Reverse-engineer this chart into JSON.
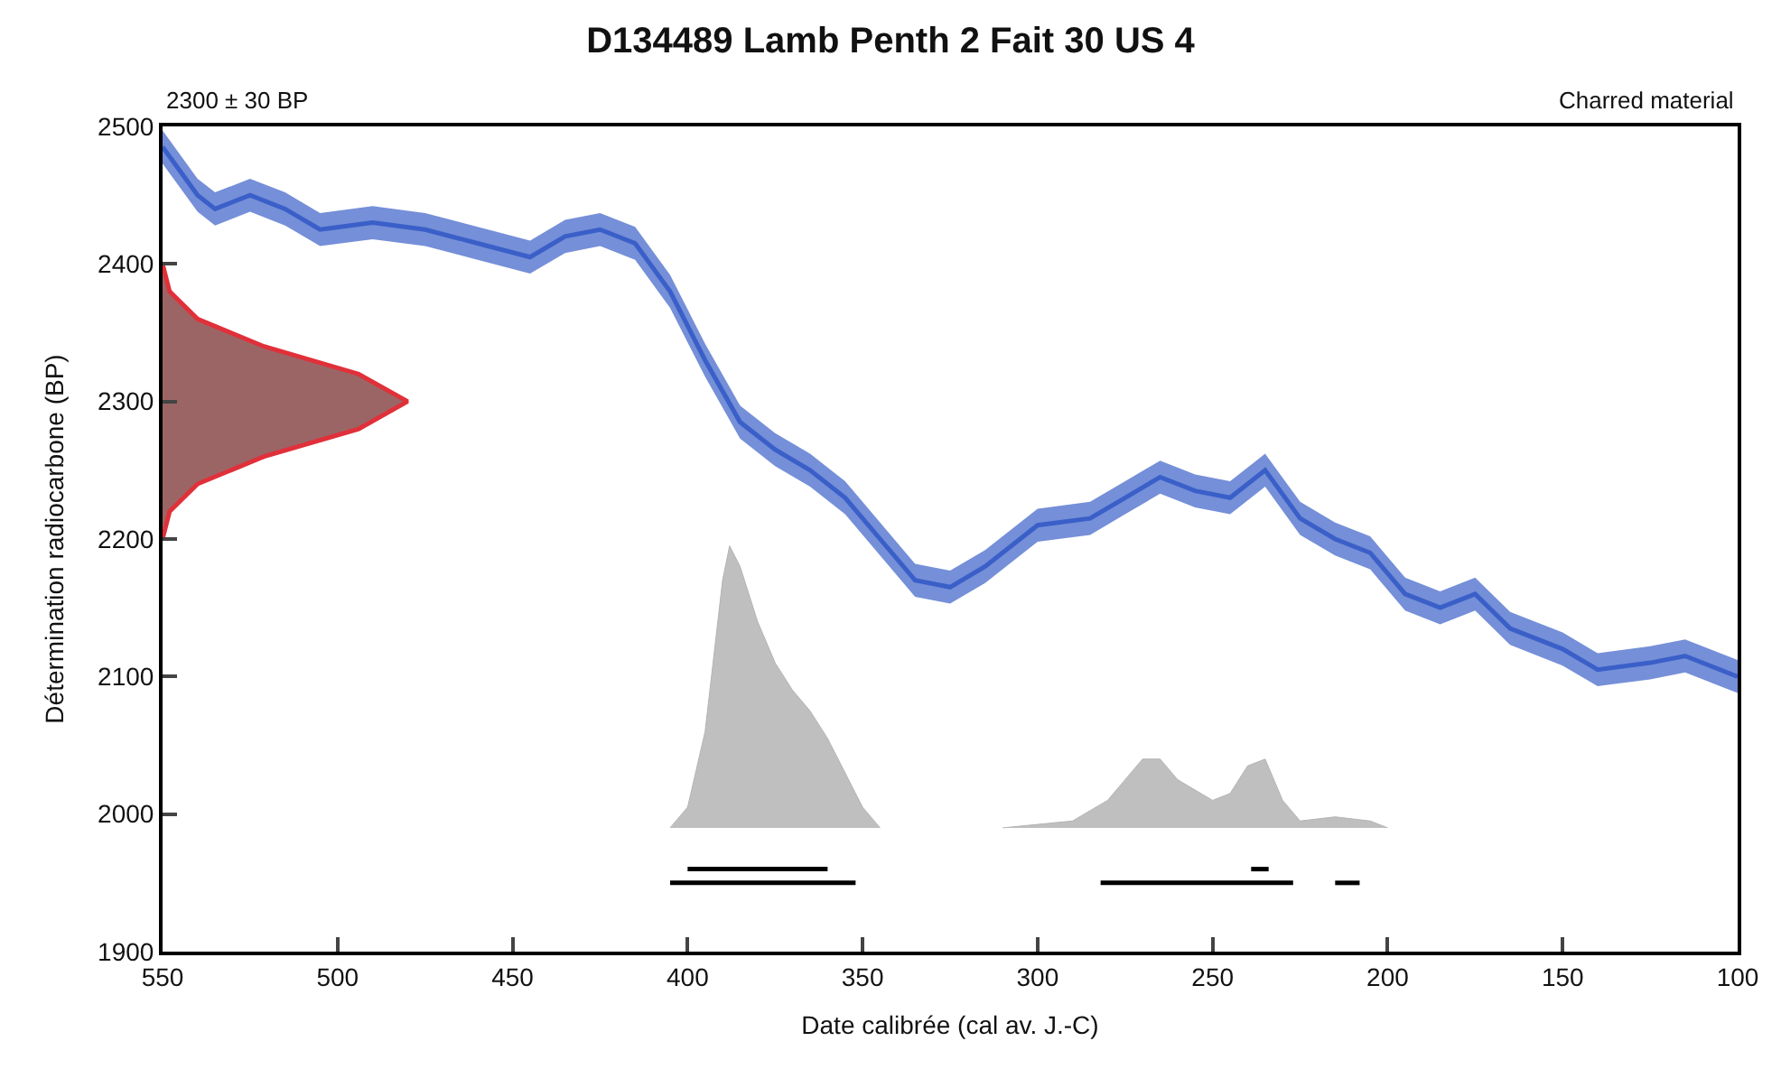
{
  "chart_data": {
    "type": "area",
    "title": "D134489 Lamb Penth 2 Fait 30 US 4",
    "xlabel": "Date calibrée (cal av. J.-C)",
    "ylabel": "Détermination radiocarbone (BP)",
    "annotations": [
      "2300 ± 30 BP",
      "Charred material"
    ],
    "xlim": [
      550,
      100
    ],
    "xticks": [
      550,
      500,
      450,
      400,
      350,
      300,
      250,
      200,
      150,
      100
    ],
    "ylim": [
      1900,
      2500
    ],
    "yticks": [
      1900,
      2000,
      2100,
      2200,
      2300,
      2400,
      2500
    ],
    "series": [
      {
        "type": "line",
        "color": "#3a5fc8",
        "x": [
          550,
          540,
          535,
          525,
          515,
          505,
          490,
          475,
          460,
          445,
          435,
          425,
          415,
          405,
          395,
          385,
          375,
          365,
          355,
          345,
          335,
          325,
          315,
          300,
          285,
          275,
          265,
          255,
          245,
          235,
          225,
          215,
          205,
          195,
          185,
          175,
          165,
          150,
          140,
          125,
          115,
          100
        ],
        "values": [
          2485,
          2450,
          2440,
          2450,
          2440,
          2425,
          2430,
          2425,
          2415,
          2405,
          2420,
          2425,
          2415,
          2380,
          2330,
          2285,
          2265,
          2250,
          2230,
          2200,
          2170,
          2165,
          2180,
          2210,
          2215,
          2230,
          2245,
          2235,
          2230,
          2250,
          2215,
          2200,
          2190,
          2160,
          2150,
          2160,
          2135,
          2120,
          2105,
          2110,
          2115,
          2100
        ],
        "lower": [
          2473,
          2438,
          2428,
          2438,
          2428,
          2413,
          2418,
          2413,
          2403,
          2393,
          2408,
          2413,
          2403,
          2368,
          2318,
          2273,
          2253,
          2238,
          2218,
          2188,
          2158,
          2153,
          2168,
          2198,
          2203,
          2218,
          2233,
          2223,
          2218,
          2238,
          2203,
          2188,
          2178,
          2148,
          2138,
          2148,
          2123,
          2108,
          2093,
          2098,
          2103,
          2088
        ],
        "upper": [
          2497,
          2462,
          2452,
          2462,
          2452,
          2437,
          2442,
          2437,
          2427,
          2417,
          2432,
          2437,
          2427,
          2392,
          2342,
          2297,
          2277,
          2262,
          2242,
          2212,
          2182,
          2177,
          2192,
          2222,
          2227,
          2242,
          2257,
          2247,
          2242,
          2262,
          2227,
          2212,
          2202,
          2172,
          2162,
          2172,
          2147,
          2132,
          2117,
          2122,
          2127,
          2112
        ]
      },
      {
        "color": "#e0303a",
        "x": [
          550,
          548,
          540,
          521,
          494,
          480,
          494,
          521,
          540,
          548,
          550
        ],
        "values": [
          2200,
          2220,
          2240,
          2260,
          2280,
          2300,
          2320,
          2340,
          2360,
          2380,
          2400
        ]
      },
      {
        "color": "#b4b4b4",
        "x": [
          405,
          400,
          395,
          390,
          388,
          385,
          380,
          375,
          370,
          365,
          360,
          355,
          350,
          345
        ],
        "values": [
          1990,
          2005,
          2060,
          2170,
          2195,
          2180,
          2140,
          2110,
          2090,
          2075,
          2055,
          2030,
          2005,
          1990
        ]
      },
      {
        "color": "#b4b4b4",
        "x": [
          310,
          290,
          280,
          270,
          265,
          260,
          250,
          245,
          240,
          235,
          230,
          225,
          215,
          205,
          200
        ],
        "values": [
          1990,
          1995,
          2010,
          2040,
          2040,
          2025,
          2010,
          2015,
          2035,
          2040,
          2010,
          1995,
          1998,
          1995,
          1990
        ]
      },
      {
        "type": "line",
        "color": "#000000",
        "x": [
          400,
          360,
          null,
          239,
          234
        ],
        "values": [
          1960,
          1960,
          null,
          1960,
          1960
        ]
      },
      {
        "type": "line",
        "color": "#000000",
        "x": [
          405,
          352,
          null,
          282,
          227,
          null,
          215,
          208
        ],
        "values": [
          1950,
          1950,
          null,
          1950,
          1950,
          null,
          1950,
          1950
        ]
      }
    ]
  }
}
